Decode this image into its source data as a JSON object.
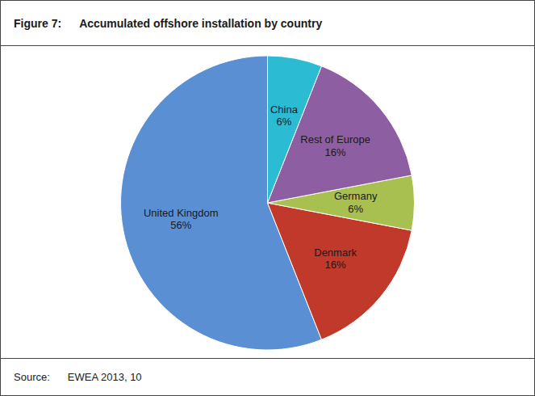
{
  "chart_data": {
    "type": "pie",
    "title": "Figure 7:",
    "subtitle": "Accumulated offshore installation by country",
    "annotations": [
      "Source:",
      "EWEA 2013, 10"
    ],
    "categories": [
      "United Kingdom",
      "Denmark",
      "Germany",
      "Rest of Europe",
      "China"
    ],
    "values": [
      56,
      16,
      6,
      16,
      6
    ],
    "value_labels": [
      "56%",
      "16%",
      "6%",
      "16%",
      "6%"
    ],
    "colors": [
      "#5B8FD4",
      "#C0392B",
      "#A8C050",
      "#8E5EA2",
      "#2BBCD4"
    ]
  }
}
